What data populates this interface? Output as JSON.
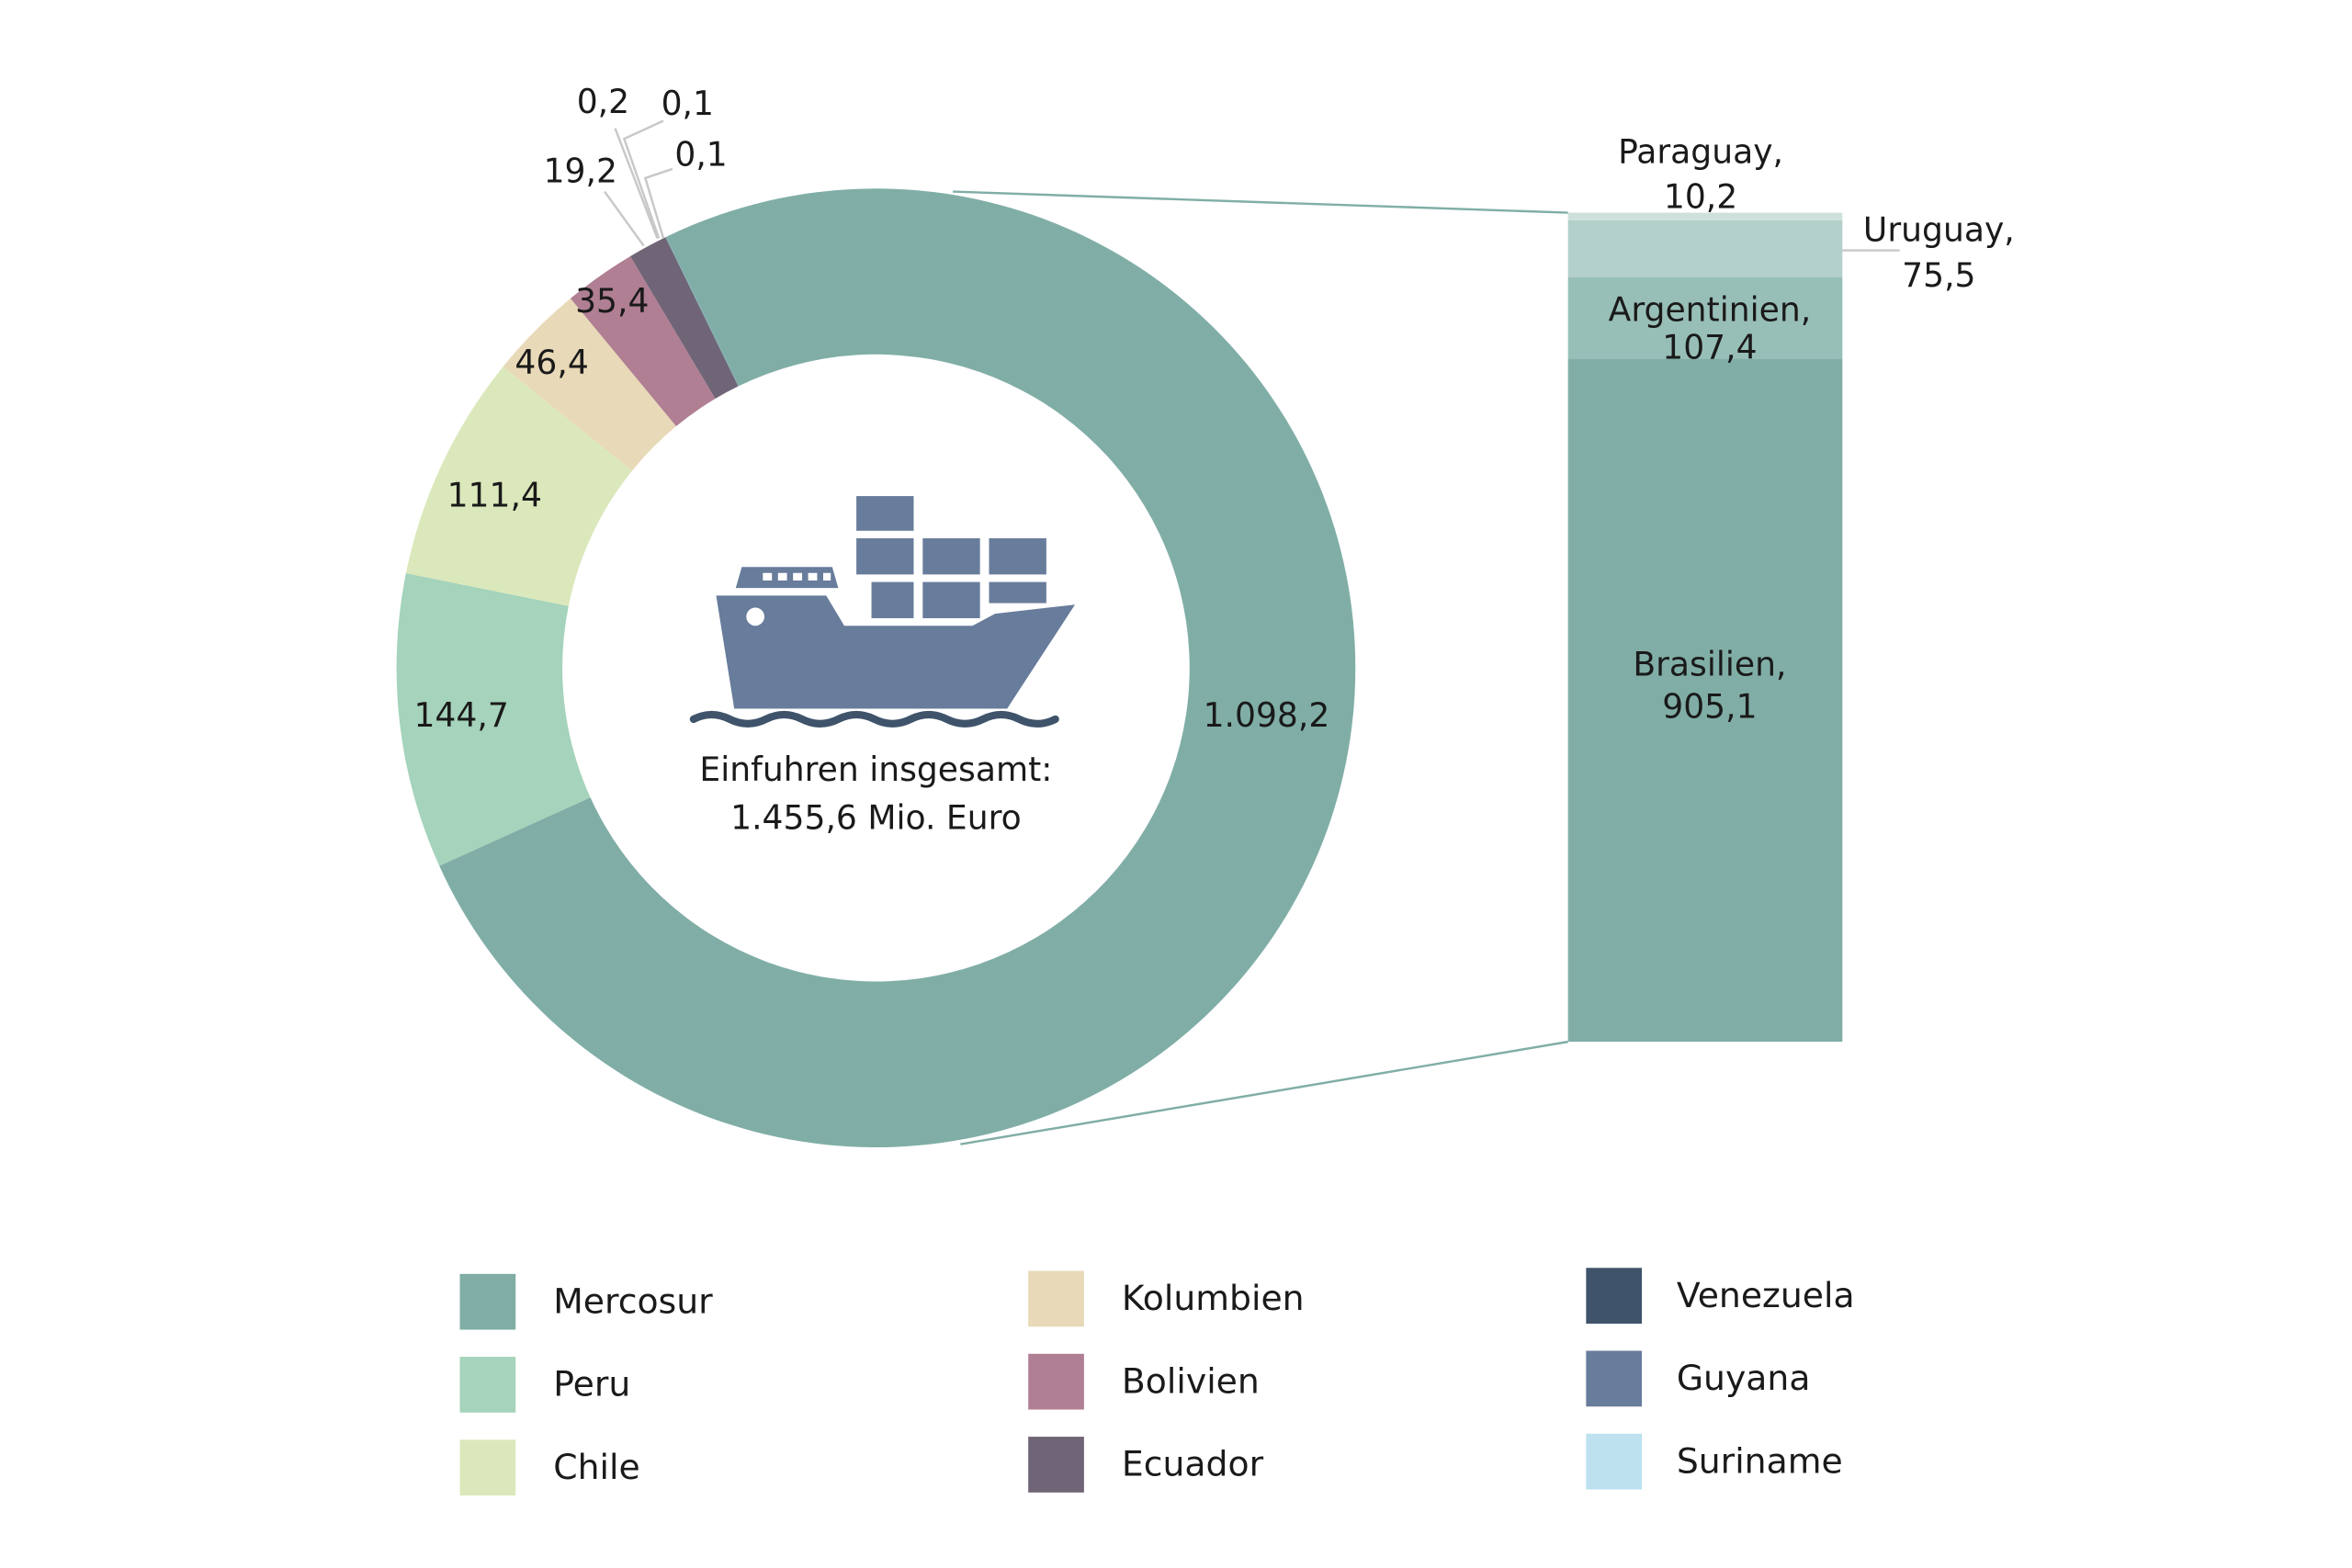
{
  "chart_data": {
    "type": "pie",
    "subtype": "donut-with-breakdown-bar",
    "center_label": [
      "Einfuhren insgesamt:",
      "1.455,6 Mio. Euro"
    ],
    "total": 1455.6,
    "slices": [
      {
        "name": "Mercosur",
        "value": 1098.2,
        "label": "1.098,2",
        "color": "#80aea6"
      },
      {
        "name": "Peru",
        "value": 144.7,
        "label": "144,7",
        "color": "#a5d3bb"
      },
      {
        "name": "Chile",
        "value": 111.4,
        "label": "111,4",
        "color": "#dbe8bb"
      },
      {
        "name": "Kolumbien",
        "value": 46.4,
        "label": "46,4",
        "color": "#e8d9b8"
      },
      {
        "name": "Bolivien",
        "value": 35.4,
        "label": "35,4",
        "color": "#b07f93"
      },
      {
        "name": "Ecuador",
        "value": 19.2,
        "label": "19,2",
        "color": "#6f6577"
      },
      {
        "name": "Venezuela",
        "value": 0.2,
        "label": "0,2",
        "color": "#3f546b"
      },
      {
        "name": "Guyana",
        "value": 0.1,
        "label": "0,1",
        "color": "#687c9b"
      },
      {
        "name": "Suriname",
        "value": 0.1,
        "label": "0,1",
        "color": "#bde1ef"
      }
    ],
    "breakdown": {
      "of": "Mercosur",
      "segments": [
        {
          "name": "Brasilien",
          "value": 905.1,
          "label": [
            "Brasilien,",
            "905,1"
          ],
          "color": "#80aea6"
        },
        {
          "name": "Argentinien",
          "value": 107.4,
          "label": [
            "Argentinien,",
            "107,4"
          ],
          "color": "#98bfb7"
        },
        {
          "name": "Uruguay",
          "value": 75.5,
          "label": [
            "Uruguay,",
            "75,5"
          ],
          "color": "#b3d0ca"
        },
        {
          "name": "Paraguay",
          "value": 10.2,
          "label": [
            "Paraguay,",
            "10,2"
          ],
          "color": "#cde1dc"
        }
      ]
    },
    "legend": {
      "placement": "bottom",
      "items": [
        "Mercosur",
        "Peru",
        "Chile",
        "Kolumbien",
        "Bolivien",
        "Ecuador",
        "Venezuela",
        "Guyana",
        "Suriname"
      ]
    }
  },
  "icons": {
    "center": "container-ship-icon"
  }
}
